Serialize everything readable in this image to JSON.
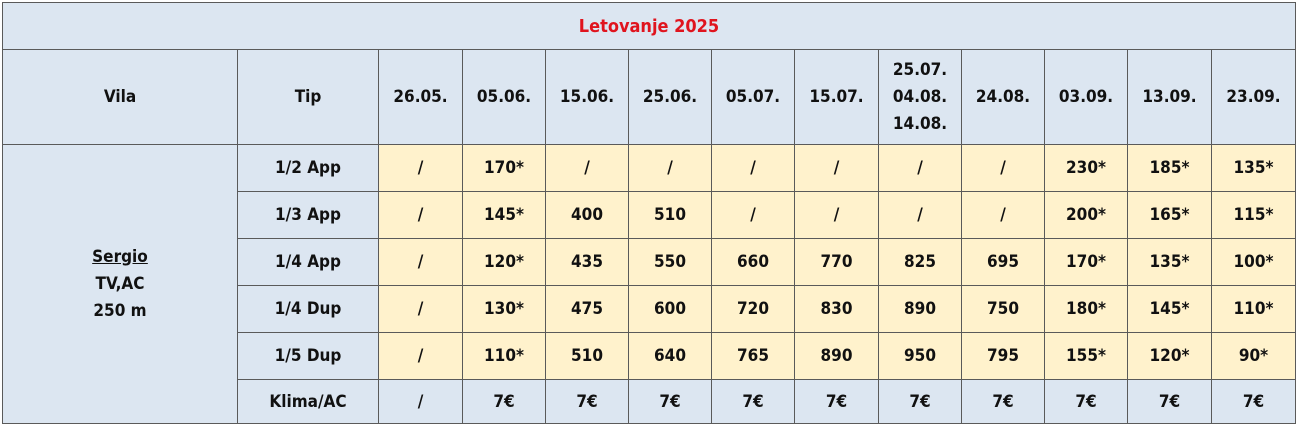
{
  "title": "Letovanje 2025",
  "headers": {
    "vila": "Vila",
    "tip": "Tip",
    "dates": [
      "26.05.",
      "05.06.",
      "15.06.",
      "25.06.",
      "05.07.",
      "15.07.",
      [
        "25.07.",
        "04.08.",
        "14.08."
      ],
      "24.08.",
      "03.09.",
      "13.09.",
      "23.09."
    ]
  },
  "villa": {
    "name": "Sergio",
    "amenities": "TV,AC",
    "distance": "250 m"
  },
  "rows": [
    {
      "type": "1/2 App",
      "prices": [
        "/",
        "170*",
        "/",
        "/",
        "/",
        "/",
        "/",
        "/",
        "230*",
        "185*",
        "135*"
      ]
    },
    {
      "type": "1/3 App",
      "prices": [
        "/",
        "145*",
        "400",
        "510",
        "/",
        "/",
        "/",
        "/",
        "200*",
        "165*",
        "115*"
      ]
    },
    {
      "type": "1/4 App",
      "prices": [
        "/",
        "120*",
        "435",
        "550",
        "660",
        "770",
        "825",
        "695",
        "170*",
        "135*",
        "100*"
      ]
    },
    {
      "type": "1/4 Dup",
      "prices": [
        "/",
        "130*",
        "475",
        "600",
        "720",
        "830",
        "890",
        "750",
        "180*",
        "145*",
        "110*"
      ]
    },
    {
      "type": "1/5 Dup",
      "prices": [
        "/",
        "110*",
        "510",
        "640",
        "765",
        "890",
        "950",
        "795",
        "155*",
        "120*",
        "90*"
      ]
    }
  ],
  "klima": {
    "label": "Klima/AC",
    "prices": [
      "/",
      "7€",
      "7€",
      "7€",
      "7€",
      "7€",
      "7€",
      "7€",
      "7€",
      "7€",
      "7€"
    ]
  },
  "colors": {
    "header_bg": "#dce6f1",
    "cell_bg": "#fff2cc",
    "title_color": "#e0141e"
  }
}
